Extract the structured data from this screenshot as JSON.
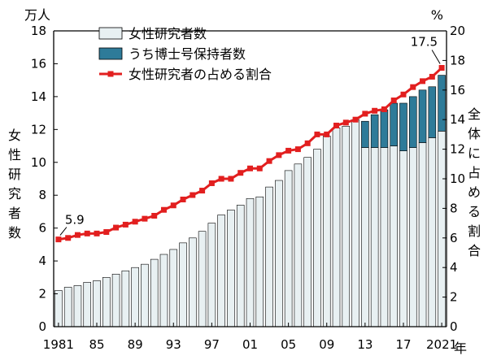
{
  "chart_data": {
    "type": "bar+line",
    "left_unit": "万人",
    "right_unit": "%",
    "x_unit": "年",
    "left_axis_title": [
      "女",
      "性",
      "研",
      "究",
      "者",
      "数"
    ],
    "right_axis_title": [
      "全",
      "体",
      "に",
      "占",
      "め",
      "る",
      "割",
      "合"
    ],
    "left_ylim": [
      0,
      18
    ],
    "left_ticks": [
      "0",
      "2",
      "4",
      "6",
      "8",
      "10",
      "12",
      "14",
      "16",
      "18"
    ],
    "right_ylim": [
      0,
      20
    ],
    "right_ticks": [
      "0",
      "2",
      "4",
      "6",
      "8",
      "10",
      "12",
      "14",
      "16",
      "18",
      "20"
    ],
    "x_tick_labels": [
      "1981",
      "85",
      "89",
      "93",
      "97",
      "01",
      "05",
      "09",
      "13",
      "17",
      "2021"
    ],
    "x_tick_years": [
      1981,
      1985,
      1989,
      1993,
      1997,
      2001,
      2005,
      2009,
      2013,
      2017,
      2021
    ],
    "years": [
      1981,
      1982,
      1983,
      1984,
      1985,
      1986,
      1987,
      1988,
      1989,
      1990,
      1991,
      1992,
      1993,
      1994,
      1995,
      1996,
      1997,
      1998,
      1999,
      2000,
      2001,
      2002,
      2003,
      2004,
      2005,
      2006,
      2007,
      2008,
      2009,
      2010,
      2011,
      2012,
      2013,
      2014,
      2015,
      2016,
      2017,
      2018,
      2019,
      2020,
      2021
    ],
    "series": [
      {
        "name": "女性研究者数",
        "kind": "bar",
        "axis": "left",
        "values": [
          2.2,
          2.4,
          2.5,
          2.7,
          2.8,
          3.0,
          3.2,
          3.4,
          3.6,
          3.8,
          4.1,
          4.4,
          4.7,
          5.1,
          5.4,
          5.8,
          6.3,
          6.8,
          7.1,
          7.4,
          7.8,
          7.9,
          8.5,
          8.9,
          9.5,
          9.9,
          10.3,
          10.8,
          11.6,
          12.1,
          12.2,
          12.6,
          12.5,
          12.9,
          13.2,
          13.6,
          13.6,
          14.0,
          14.4,
          14.6,
          15.3
        ]
      },
      {
        "name": "うち博士号保持者数",
        "kind": "bar-segment",
        "axis": "left",
        "values": [
          null,
          null,
          null,
          null,
          null,
          null,
          null,
          null,
          null,
          null,
          null,
          null,
          null,
          null,
          null,
          null,
          null,
          null,
          null,
          null,
          null,
          null,
          null,
          null,
          null,
          null,
          null,
          null,
          null,
          null,
          null,
          null,
          1.6,
          2.0,
          2.3,
          2.6,
          2.9,
          3.1,
          3.2,
          3.1,
          3.4
        ]
      },
      {
        "name": "女性研究者の占める割合",
        "kind": "line",
        "axis": "right",
        "values": [
          5.9,
          6.0,
          6.2,
          6.3,
          6.3,
          6.4,
          6.7,
          6.9,
          7.1,
          7.3,
          7.5,
          7.9,
          8.2,
          8.6,
          8.9,
          9.2,
          9.7,
          10.0,
          10.0,
          10.4,
          10.7,
          10.7,
          11.2,
          11.6,
          11.9,
          12.0,
          12.4,
          13.0,
          13.0,
          13.6,
          13.8,
          14.0,
          14.4,
          14.6,
          14.7,
          15.3,
          15.7,
          16.2,
          16.6,
          16.9,
          17.5
        ]
      }
    ],
    "annotations": [
      {
        "year": 1981,
        "text": "5.9"
      },
      {
        "year": 2021,
        "text": "17.5"
      }
    ],
    "colors": {
      "bar_fill_light": "#e8f0f2",
      "bar_fill_dark": "#2e7b99",
      "bar_stroke": "#000000",
      "line": "#e21f1f",
      "marker": "#e21f1f"
    },
    "legend_position": "top-center",
    "grid": false
  }
}
